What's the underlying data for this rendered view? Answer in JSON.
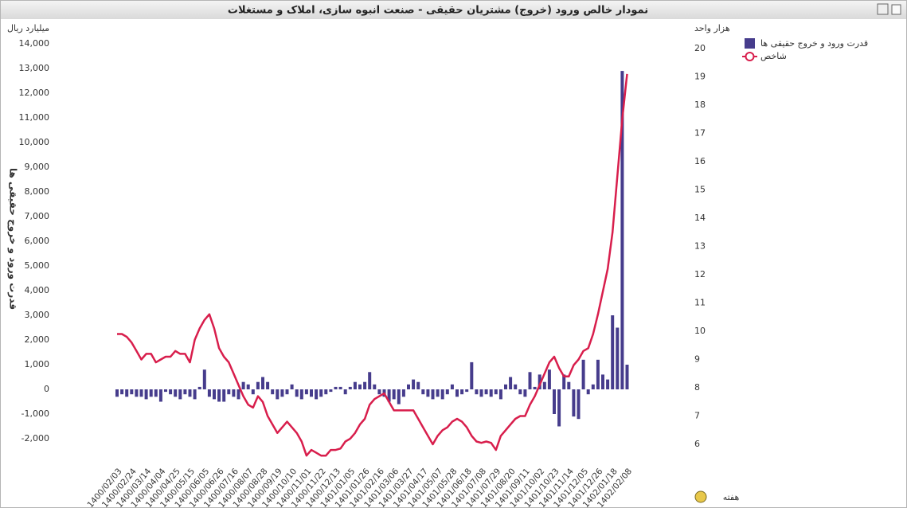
{
  "chart_data": {
    "type": "combo",
    "title": "نمودار خالص ورود (خروج) مشتریان حقیقی - صنعت انبوه سازی، املاک و مستغلات",
    "ylabel": "قدرت ورود و خروج حقیقی ها",
    "y_unit": "میلیارد ریال",
    "y2_unit": "هزار واحد",
    "xlabel": "هفته",
    "categories": [
      "1400/02/03",
      null,
      null,
      "1400/02/24",
      null,
      null,
      "1400/03/14",
      null,
      null,
      "1400/04/04",
      null,
      null,
      "1400/04/25",
      null,
      null,
      "1400/05/15",
      null,
      null,
      "1400/06/05",
      null,
      null,
      "1400/06/26",
      null,
      null,
      "1400/07/16",
      null,
      null,
      "1400/08/07",
      null,
      null,
      "1400/08/28",
      null,
      null,
      "1400/09/19",
      null,
      null,
      "1400/10/10",
      null,
      null,
      "1400/11/01",
      null,
      null,
      "1400/11/22",
      null,
      null,
      "1400/12/13",
      null,
      null,
      "1401/01/05",
      null,
      null,
      "1401/01/26",
      null,
      null,
      "1401/02/16",
      null,
      null,
      "1401/03/06",
      null,
      null,
      "1401/03/27",
      null,
      null,
      "1401/04/17",
      null,
      null,
      "1401/05/07",
      null,
      null,
      "1401/05/28",
      null,
      null,
      "1401/06/18",
      null,
      null,
      "1401/07/08",
      null,
      null,
      "1401/07/29",
      null,
      null,
      "1401/08/20",
      null,
      null,
      "1401/09/11",
      null,
      null,
      "1401/10/02",
      null,
      null,
      "1401/10/23",
      null,
      null,
      "1401/11/14",
      null,
      null,
      "1401/12/05",
      null,
      null,
      "1401/12/26",
      null,
      null,
      "1402/01/18",
      null,
      null,
      "1402/02/08"
    ],
    "series": [
      {
        "name": "قدرت ورود و خروج حقیقی ها",
        "type": "bar",
        "color": "#463c8c",
        "values": [
          -300,
          -200,
          -300,
          -200,
          -300,
          -300,
          -400,
          -300,
          -300,
          -500,
          -100,
          -200,
          -300,
          -400,
          -200,
          -300,
          -400,
          100,
          800,
          -300,
          -400,
          -500,
          -500,
          -200,
          -300,
          -400,
          300,
          200,
          -200,
          300,
          500,
          300,
          -200,
          -400,
          -300,
          -200,
          200,
          -300,
          -400,
          -200,
          -300,
          -400,
          -300,
          -200,
          -100,
          100,
          100,
          -200,
          100,
          300,
          200,
          300,
          700,
          200,
          -200,
          -300,
          -500,
          -400,
          -600,
          -300,
          200,
          400,
          300,
          -200,
          -300,
          -400,
          -300,
          -400,
          -200,
          200,
          -300,
          -200,
          -100,
          1100,
          -200,
          -300,
          -200,
          -300,
          -200,
          -400,
          200,
          500,
          200,
          -200,
          -300,
          700,
          100,
          600,
          300,
          800,
          -1000,
          -1500,
          600,
          300,
          -1100,
          -1200,
          1200,
          -200,
          200,
          1200,
          600,
          400,
          3000,
          2500,
          12900,
          1000
        ]
      },
      {
        "name": "شاخص",
        "type": "line",
        "axis": "y2",
        "color": "#d81e4c",
        "values": [
          9.9,
          9.9,
          9.8,
          9.6,
          9.3,
          9.0,
          9.2,
          9.2,
          8.9,
          9.0,
          9.1,
          9.1,
          9.3,
          9.2,
          9.2,
          8.9,
          9.7,
          10.1,
          10.4,
          10.6,
          10.1,
          9.4,
          9.1,
          8.9,
          8.5,
          8.1,
          7.7,
          7.4,
          7.3,
          7.7,
          7.5,
          7.0,
          6.7,
          6.4,
          6.6,
          6.8,
          6.6,
          6.4,
          6.1,
          5.6,
          5.8,
          5.7,
          5.6,
          5.6,
          5.8,
          5.8,
          5.85,
          6.1,
          6.2,
          6.4,
          6.7,
          6.9,
          7.4,
          7.6,
          7.7,
          7.8,
          7.5,
          7.2,
          7.2,
          7.2,
          7.2,
          7.2,
          6.9,
          6.6,
          6.3,
          6.0,
          6.3,
          6.5,
          6.6,
          6.8,
          6.9,
          6.8,
          6.6,
          6.3,
          6.1,
          6.05,
          6.1,
          6.05,
          5.8,
          6.3,
          6.5,
          6.7,
          6.9,
          7.0,
          7.0,
          7.4,
          7.7,
          8.1,
          8.5,
          8.9,
          9.1,
          8.7,
          8.4,
          8.4,
          8.8,
          9.0,
          9.3,
          9.4,
          9.9,
          10.6,
          11.4,
          12.2,
          13.5,
          15.5,
          17.5,
          19.1
        ]
      }
    ],
    "ylim": [
      -2000,
      14000
    ],
    "yticks": [
      {
        "value": -2000,
        "label": "-2,000"
      },
      {
        "value": -1000,
        "label": "-1,000"
      },
      0,
      {
        "value": 1000,
        "label": "1,000"
      },
      {
        "value": 2000,
        "label": "2,000"
      },
      {
        "value": 3000,
        "label": "3,000"
      },
      {
        "value": 4000,
        "label": "4,000"
      },
      {
        "value": 5000,
        "label": "5,000"
      },
      {
        "value": 6000,
        "label": "6,000"
      },
      {
        "value": 7000,
        "label": "7,000"
      },
      {
        "value": 8000,
        "label": "8,000"
      },
      {
        "value": 9000,
        "label": "9,000"
      },
      {
        "value": 10000,
        "label": "10,000"
      },
      {
        "value": 11000,
        "label": "11,000"
      },
      {
        "value": 12000,
        "label": "12,000"
      },
      {
        "value": 13000,
        "label": "13,000"
      },
      {
        "value": 14000,
        "label": "14,000"
      }
    ],
    "y2lim": [
      6,
      20
    ],
    "y2ticks": [
      6,
      7,
      8,
      9,
      10,
      11,
      12,
      13,
      14,
      15,
      16,
      17,
      18,
      19,
      20
    ],
    "legend": "top-right"
  }
}
